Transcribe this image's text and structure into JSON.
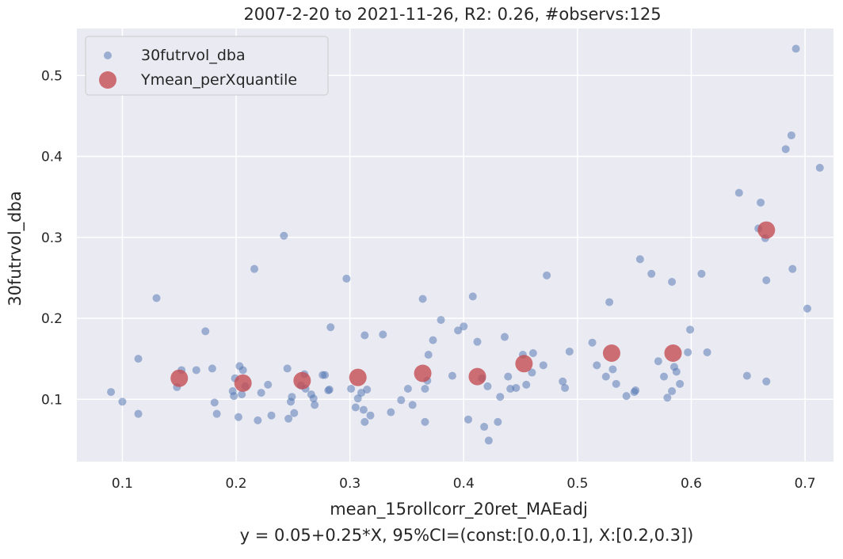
{
  "chart_data": {
    "type": "scatter",
    "title": "2007-2-20 to 2021-11-26, R2: 0.26, #observs:125",
    "xlabel": "mean_15rollcorr_20ret_MAEadj",
    "xlabel2": "y = 0.05+0.25*X, 95%CI=(const:[0.0,0.1], X:[0.2,0.3])",
    "ylabel": "30futrvol_dba",
    "xlim": [
      0.06,
      0.725
    ],
    "ylim": [
      0.023,
      0.558
    ],
    "xticks": [
      0.1,
      0.2,
      0.3,
      0.4,
      0.5,
      0.6,
      0.7
    ],
    "yticks": [
      0.1,
      0.2,
      0.3,
      0.4,
      0.5
    ],
    "xtick_labels": [
      "0.1",
      "0.2",
      "0.3",
      "0.4",
      "0.5",
      "0.6",
      "0.7"
    ],
    "ytick_labels": [
      "0.1",
      "0.2",
      "0.3",
      "0.4",
      "0.5"
    ],
    "grid": true,
    "legend_position": "top-left",
    "series": [
      {
        "name": "30futrvol_dba",
        "color": "#4c72b0",
        "points": [
          [
            0.09,
            0.109
          ],
          [
            0.1,
            0.097
          ],
          [
            0.114,
            0.082
          ],
          [
            0.114,
            0.15
          ],
          [
            0.13,
            0.225
          ],
          [
            0.148,
            0.115
          ],
          [
            0.152,
            0.136
          ],
          [
            0.165,
            0.136
          ],
          [
            0.173,
            0.184
          ],
          [
            0.179,
            0.138
          ],
          [
            0.181,
            0.096
          ],
          [
            0.183,
            0.082
          ],
          [
            0.197,
            0.11
          ],
          [
            0.198,
            0.104
          ],
          [
            0.199,
            0.126
          ],
          [
            0.202,
            0.078
          ],
          [
            0.203,
            0.141
          ],
          [
            0.205,
            0.106
          ],
          [
            0.206,
            0.136
          ],
          [
            0.208,
            0.116
          ],
          [
            0.216,
            0.261
          ],
          [
            0.219,
            0.074
          ],
          [
            0.222,
            0.108
          ],
          [
            0.228,
            0.118
          ],
          [
            0.231,
            0.08
          ],
          [
            0.242,
            0.302
          ],
          [
            0.245,
            0.138
          ],
          [
            0.246,
            0.076
          ],
          [
            0.248,
            0.097
          ],
          [
            0.249,
            0.103
          ],
          [
            0.251,
            0.083
          ],
          [
            0.257,
            0.117
          ],
          [
            0.26,
            0.131
          ],
          [
            0.261,
            0.113
          ],
          [
            0.266,
            0.106
          ],
          [
            0.268,
            0.101
          ],
          [
            0.269,
            0.093
          ],
          [
            0.276,
            0.13
          ],
          [
            0.278,
            0.13
          ],
          [
            0.281,
            0.111
          ],
          [
            0.282,
            0.112
          ],
          [
            0.283,
            0.189
          ],
          [
            0.297,
            0.249
          ],
          [
            0.301,
            0.113
          ],
          [
            0.305,
            0.09
          ],
          [
            0.307,
            0.101
          ],
          [
            0.31,
            0.108
          ],
          [
            0.312,
            0.087
          ],
          [
            0.313,
            0.179
          ],
          [
            0.313,
            0.072
          ],
          [
            0.315,
            0.112
          ],
          [
            0.318,
            0.08
          ],
          [
            0.329,
            0.18
          ],
          [
            0.336,
            0.084
          ],
          [
            0.345,
            0.099
          ],
          [
            0.351,
            0.113
          ],
          [
            0.355,
            0.093
          ],
          [
            0.364,
            0.224
          ],
          [
            0.366,
            0.072
          ],
          [
            0.366,
            0.113
          ],
          [
            0.368,
            0.123
          ],
          [
            0.369,
            0.155
          ],
          [
            0.373,
            0.173
          ],
          [
            0.38,
            0.198
          ],
          [
            0.39,
            0.129
          ],
          [
            0.395,
            0.185
          ],
          [
            0.4,
            0.19
          ],
          [
            0.404,
            0.075
          ],
          [
            0.408,
            0.227
          ],
          [
            0.412,
            0.171
          ],
          [
            0.416,
            0.126
          ],
          [
            0.418,
            0.066
          ],
          [
            0.421,
            0.116
          ],
          [
            0.422,
            0.049
          ],
          [
            0.43,
            0.072
          ],
          [
            0.432,
            0.103
          ],
          [
            0.436,
            0.177
          ],
          [
            0.439,
            0.128
          ],
          [
            0.441,
            0.113
          ],
          [
            0.446,
            0.114
          ],
          [
            0.452,
            0.155
          ],
          [
            0.455,
            0.118
          ],
          [
            0.46,
            0.133
          ],
          [
            0.461,
            0.157
          ],
          [
            0.47,
            0.142
          ],
          [
            0.473,
            0.253
          ],
          [
            0.487,
            0.122
          ],
          [
            0.489,
            0.114
          ],
          [
            0.493,
            0.159
          ],
          [
            0.513,
            0.17
          ],
          [
            0.517,
            0.142
          ],
          [
            0.525,
            0.128
          ],
          [
            0.528,
            0.22
          ],
          [
            0.531,
            0.137
          ],
          [
            0.534,
            0.119
          ],
          [
            0.543,
            0.104
          ],
          [
            0.55,
            0.109
          ],
          [
            0.551,
            0.111
          ],
          [
            0.555,
            0.273
          ],
          [
            0.565,
            0.255
          ],
          [
            0.571,
            0.147
          ],
          [
            0.576,
            0.128
          ],
          [
            0.579,
            0.102
          ],
          [
            0.583,
            0.245
          ],
          [
            0.583,
            0.11
          ],
          [
            0.585,
            0.14
          ],
          [
            0.587,
            0.134
          ],
          [
            0.59,
            0.119
          ],
          [
            0.597,
            0.158
          ],
          [
            0.599,
            0.186
          ],
          [
            0.609,
            0.255
          ],
          [
            0.614,
            0.158
          ],
          [
            0.642,
            0.355
          ],
          [
            0.649,
            0.129
          ],
          [
            0.659,
            0.311
          ],
          [
            0.661,
            0.343
          ],
          [
            0.665,
            0.299
          ],
          [
            0.666,
            0.247
          ],
          [
            0.666,
            0.122
          ],
          [
            0.683,
            0.409
          ],
          [
            0.688,
            0.426
          ],
          [
            0.689,
            0.261
          ],
          [
            0.692,
            0.533
          ],
          [
            0.702,
            0.212
          ],
          [
            0.713,
            0.386
          ]
        ]
      },
      {
        "name": "Ymean_perXquantile",
        "color": "#c44e52",
        "points": [
          [
            0.15,
            0.126
          ],
          [
            0.206,
            0.12
          ],
          [
            0.258,
            0.123
          ],
          [
            0.307,
            0.127
          ],
          [
            0.364,
            0.132
          ],
          [
            0.412,
            0.128
          ],
          [
            0.453,
            0.144
          ],
          [
            0.53,
            0.157
          ],
          [
            0.584,
            0.157
          ],
          [
            0.666,
            0.309
          ]
        ]
      }
    ]
  }
}
